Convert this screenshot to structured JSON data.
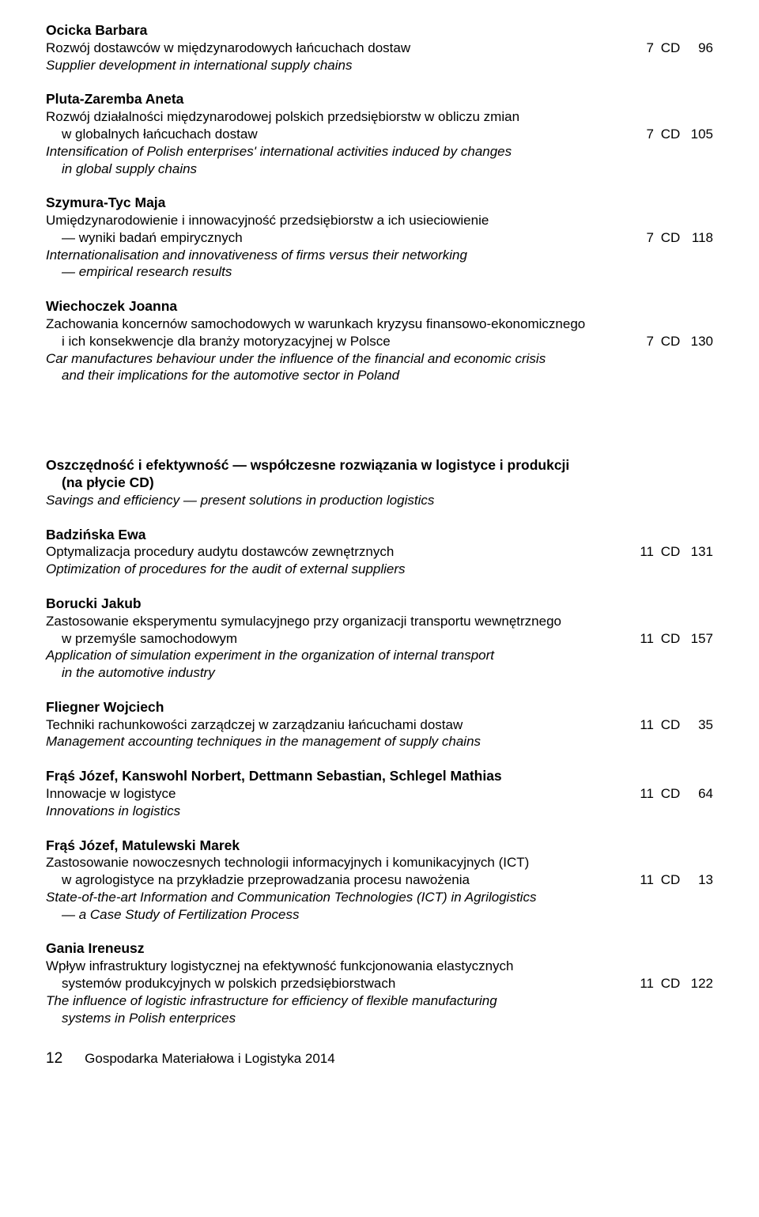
{
  "entries": [
    {
      "author": "Ocicka Barbara",
      "title_pl": "Rozwój dostawców w międzynarodowych łańcuchach dostaw",
      "issue": "7",
      "cd": "CD",
      "page": "96",
      "sub_en": "Supplier development in international supply chains"
    },
    {
      "author": "Pluta-Zaremba Aneta",
      "title_pl_a": "Rozwój działalności międzynarodowej polskich przedsiębiorstw w obliczu zmian",
      "title_pl_b": "w globalnych łańcuchach dostaw",
      "issue": "7",
      "cd": "CD",
      "page": "105",
      "sub_en_a": "Intensification of Polish enterprises' international activities induced by changes",
      "sub_en_b": "in global supply chains"
    },
    {
      "author": "Szymura-Tyc Maja",
      "title_pl_a": "Umiędzynarodowienie i innowacyjność przedsiębiorstw a ich usieciowienie",
      "title_pl_b": "— wyniki badań empirycznych",
      "issue": "7",
      "cd": "CD",
      "page": "118",
      "sub_en_a": "Internationalisation and innovativeness of firms versus their networking",
      "sub_en_b": "— empirical research results"
    },
    {
      "author": "Wiechoczek Joanna",
      "title_pl_a": "Zachowania koncernów samochodowych w warunkach kryzysu finansowo-ekonomicznego",
      "title_pl_b": "i ich konsekwencje dla branży motoryzacyjnej w Polsce",
      "issue": "7",
      "cd": "CD",
      "page": "130",
      "sub_en_a": "Car manufactures behaviour under the influence of the financial and economic crisis",
      "sub_en_b": "and their implications for the automotive sector in Poland"
    }
  ],
  "section": {
    "title_a": "Oszczędność i efektywność — współczesne rozwiązania w logistyce i produkcji",
    "title_b": "(na płycie CD)",
    "sub_en": "Savings and efficiency — present solutions in production logistics"
  },
  "entries2": [
    {
      "author": "Badzińska Ewa",
      "title_pl": "Optymalizacja procedury audytu dostawców zewnętrznych",
      "issue": "11",
      "cd": "CD",
      "page": "131",
      "sub_en": "Optimization of procedures for the audit of external suppliers"
    },
    {
      "author": "Borucki Jakub",
      "title_pl_a": "Zastosowanie eksperymentu symulacyjnego przy organizacji transportu wewnętrznego",
      "title_pl_b": "w przemyśle samochodowym",
      "issue": "11",
      "cd": "CD",
      "page": "157",
      "sub_en_a": "Application of simulation experiment in the organization of internal transport",
      "sub_en_b": "in the automotive industry"
    },
    {
      "author": "Fliegner Wojciech",
      "title_pl": "Techniki rachunkowości zarządczej w zarządzaniu łańcuchami dostaw",
      "issue": "11",
      "cd": "CD",
      "page": "35",
      "sub_en": "Management accounting techniques in the management of supply chains"
    },
    {
      "author": "Frąś Józef, Kanswohl Norbert, Dettmann Sebastian, Schlegel Mathias",
      "title_pl": "Innowacje w logistyce",
      "issue": "11",
      "cd": "CD",
      "page": "64",
      "sub_en": "Innovations in logistics"
    },
    {
      "author": "Frąś Józef, Matulewski Marek",
      "title_pl_a": "Zastosowanie nowoczesnych technologii informacyjnych i komunikacyjnych (ICT)",
      "title_pl_b": "w agrologistyce na przykładzie przeprowadzania procesu nawożenia",
      "issue": "11",
      "cd": "CD",
      "page": "13",
      "sub_en_a": "State-of-the-art Information and Communication Technologies (ICT) in Agrilogistics",
      "sub_en_b": "— a Case Study of Fertilization Process"
    },
    {
      "author": "Gania Ireneusz",
      "title_pl_a": "Wpływ infrastruktury logistycznej na efektywność funkcjonowania elastycznych",
      "title_pl_b": "systemów produkcyjnych w polskich przedsiębiorstwach",
      "issue": "11",
      "cd": "CD",
      "page": "122",
      "sub_en_a": "The influence of logistic infrastructure for efficiency of flexible manufacturing",
      "sub_en_b": "systems in Polish enterprices"
    }
  ],
  "footer": {
    "page_number": "12",
    "journal": "Gospodarka Materiałowa i Logistyka 2014"
  }
}
